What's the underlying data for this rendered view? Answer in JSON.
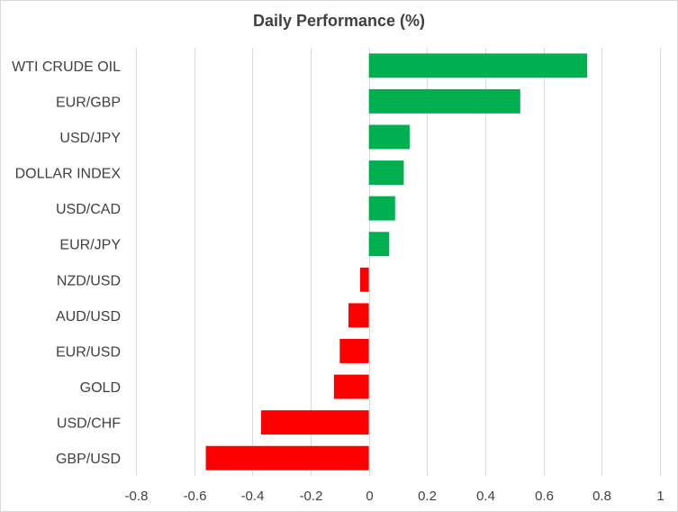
{
  "chart_data": {
    "type": "bar",
    "orientation": "horizontal",
    "title": "Daily Performance  (%)",
    "categories": [
      "WTI CRUDE OIL",
      "EUR/GBP",
      "USD/JPY",
      "DOLLAR INDEX",
      "USD/CAD",
      "EUR/JPY",
      "NZD/USD",
      "AUD/USD",
      "EUR/USD",
      "GOLD",
      "USD/CHF",
      "GBP/USD"
    ],
    "values": [
      0.75,
      0.52,
      0.14,
      0.12,
      0.09,
      0.07,
      -0.03,
      -0.07,
      -0.1,
      -0.12,
      -0.37,
      -0.56
    ],
    "xlim": [
      -0.8,
      1
    ],
    "xticks": [
      -0.8,
      -0.6,
      -0.4,
      -0.2,
      0,
      0.2,
      0.4,
      0.6,
      0.8,
      1
    ],
    "xtick_labels": [
      "-0.8",
      "-0.6",
      "-0.4",
      "-0.2",
      "0",
      "0.2",
      "0.4",
      "0.6",
      "0.8",
      "1"
    ],
    "grid": true,
    "xlabel": "",
    "ylabel": "",
    "colors": {
      "positive": "#00b050",
      "negative": "#ff0000",
      "grid": "#d9d9d9",
      "text": "#404040"
    }
  }
}
